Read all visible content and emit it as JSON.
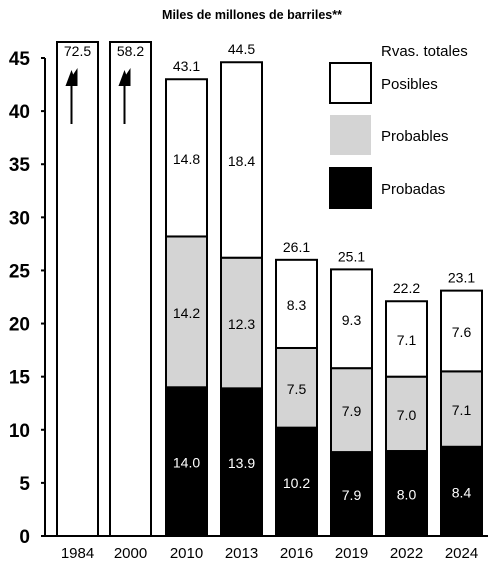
{
  "chart_data": {
    "type": "bar",
    "title": "Miles de millones de barriles**",
    "legend_title": "Rvas. totales",
    "legend_position": "top-right",
    "ylim": [
      0,
      45
    ],
    "yticks": [
      "0",
      "5",
      "10",
      "15",
      "20",
      "25",
      "30",
      "35",
      "40",
      "45"
    ],
    "categories": [
      "1984",
      "2000",
      "2010",
      "2013",
      "2016",
      "2019",
      "2022",
      "2024"
    ],
    "totals": [
      "72.5",
      "58.2",
      "43.1",
      "44.5",
      "26.1",
      "25.1",
      "22.2",
      "23.1"
    ],
    "series": [
      {
        "name": "Probadas",
        "color": "#000000",
        "values": [
          null,
          null,
          14.0,
          13.9,
          10.2,
          7.9,
          8.0,
          8.4
        ],
        "labels": [
          "",
          "",
          "14.0",
          "13.9",
          "10.2",
          "7.9",
          "8.0",
          "8.4"
        ]
      },
      {
        "name": "Probables",
        "color": "#d4d4d4",
        "values": [
          null,
          null,
          14.2,
          12.3,
          7.5,
          7.9,
          7.0,
          7.1
        ],
        "labels": [
          "",
          "",
          "14.2",
          "12.3",
          "7.5",
          "7.9",
          "7.0",
          "7.1"
        ]
      },
      {
        "name": "Posibles",
        "color": "#ffffff",
        "values": [
          null,
          null,
          14.8,
          18.4,
          8.3,
          9.3,
          7.1,
          7.6
        ],
        "labels": [
          "",
          "",
          "14.8",
          "18.4",
          "8.3",
          "9.3",
          "7.1",
          "7.6"
        ]
      }
    ],
    "off_scale_bars": [
      "1984",
      "2000"
    ],
    "grid": false
  }
}
